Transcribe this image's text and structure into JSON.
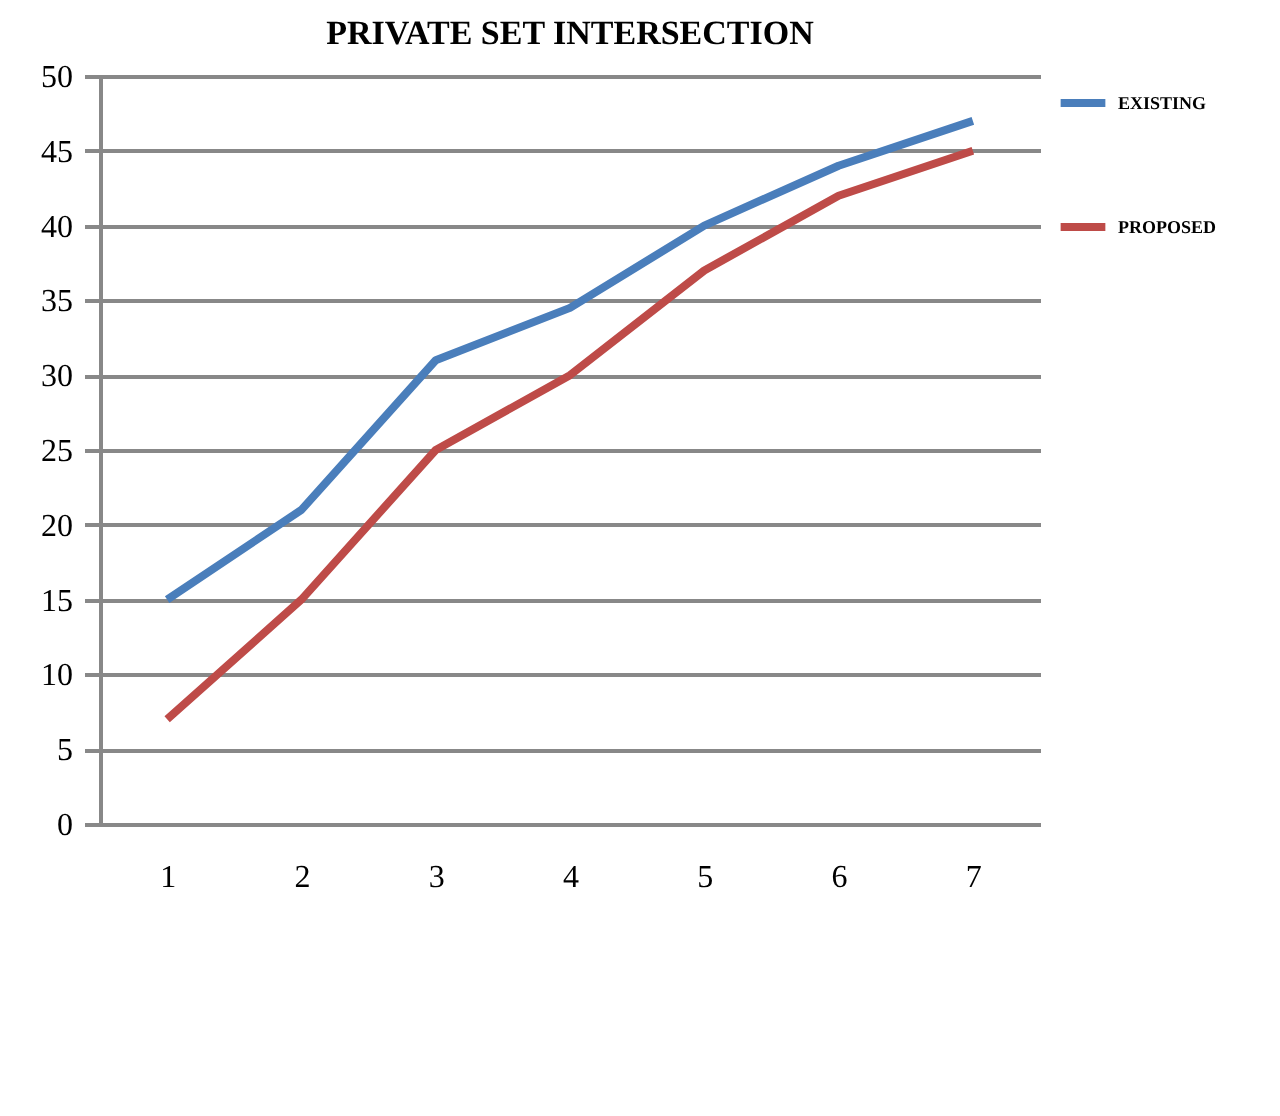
{
  "chart_data": {
    "type": "line",
    "title": "PRIVATE SET INTERSECTION",
    "categories": [
      "1",
      "2",
      "3",
      "4",
      "5",
      "6",
      "7"
    ],
    "series": [
      {
        "name": "EXISTING",
        "color": "#4a7ebb",
        "values": [
          15,
          21,
          31,
          34.5,
          40,
          44,
          47
        ]
      },
      {
        "name": "PROPOSED",
        "color": "#be4b48",
        "values": [
          7,
          15,
          25,
          30,
          37,
          42,
          45
        ]
      }
    ],
    "ylim": [
      0,
      50
    ],
    "yticks": [
      0,
      5,
      10,
      15,
      20,
      25,
      30,
      35,
      40,
      45,
      50
    ],
    "grid": "y",
    "legend": "top right",
    "marker": "none",
    "line_style": "solid"
  }
}
